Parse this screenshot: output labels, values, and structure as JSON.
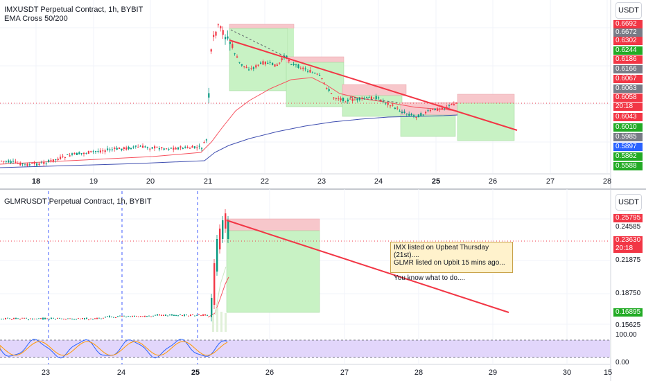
{
  "top_chart": {
    "title": "IMXUSDT Perpetual Contract, 1h, BYBIT",
    "indicator": "EMA Cross 50/200",
    "currency_button": "USDT",
    "x_ticks": [
      {
        "label": "18",
        "bold": true
      },
      {
        "label": "19",
        "bold": false
      },
      {
        "label": "20",
        "bold": false
      },
      {
        "label": "21",
        "bold": false
      },
      {
        "label": "22",
        "bold": false
      },
      {
        "label": "23",
        "bold": false
      },
      {
        "label": "24",
        "bold": false
      },
      {
        "label": "25",
        "bold": true
      },
      {
        "label": "26",
        "bold": false
      },
      {
        "label": "27",
        "bold": false
      },
      {
        "label": "28",
        "bold": false
      }
    ],
    "price_labels": [
      {
        "text": "0.6692",
        "color": "#f23645"
      },
      {
        "text": "0.6672",
        "color": "#787b86"
      },
      {
        "text": "0.6302",
        "color": "#f23645"
      },
      {
        "text": "0.6244",
        "color": "#22ab25"
      },
      {
        "text": "0.6186",
        "color": "#f23645"
      },
      {
        "text": "0.6166",
        "color": "#787b86"
      },
      {
        "text": "0.6067",
        "color": "#f23645"
      },
      {
        "text": "0.6063",
        "color": "#787b86"
      },
      {
        "text": "0.6058",
        "color": "#f23645"
      },
      {
        "text": "20:18",
        "color": "#f23645"
      },
      {
        "text": "0.6043",
        "color": "#f23645"
      },
      {
        "text": "0.6010",
        "color": "#22ab25"
      },
      {
        "text": "0.5985",
        "color": "#787b86"
      },
      {
        "text": "0.5897",
        "color": "#2962ff"
      },
      {
        "text": "0.5862",
        "color": "#22ab25"
      },
      {
        "text": "0.5588",
        "color": "#22ab25"
      }
    ]
  },
  "bottom_chart": {
    "title": "GLMRUSDT Perpetual Contract, 1h, BYBIT",
    "currency_button": "USDT",
    "x_ticks": [
      {
        "label": "23",
        "bold": false
      },
      {
        "label": "24",
        "bold": false
      },
      {
        "label": "25",
        "bold": true
      },
      {
        "label": "26",
        "bold": false
      },
      {
        "label": "27",
        "bold": false
      },
      {
        "label": "28",
        "bold": false
      },
      {
        "label": "29",
        "bold": false
      },
      {
        "label": "30",
        "bold": false
      },
      {
        "label": "15",
        "bold": false
      }
    ],
    "price_labels": [
      {
        "text": "0.25795",
        "color": "#f23645"
      },
      {
        "text": "0.23630",
        "color": "#f23645"
      },
      {
        "text": "20:18",
        "color": "#f23645"
      },
      {
        "text": "0.16895",
        "color": "#22ab25"
      }
    ],
    "axis_labels": [
      "0.24585",
      "0.21875",
      "0.18750",
      "0.15625",
      "100.00",
      "0.00"
    ],
    "note_text": "IMX listed on Upbeat Thursday (21st)....\nGLMR listed on Upbit 15 mins ago...\n\nYou know what to do...."
  }
}
